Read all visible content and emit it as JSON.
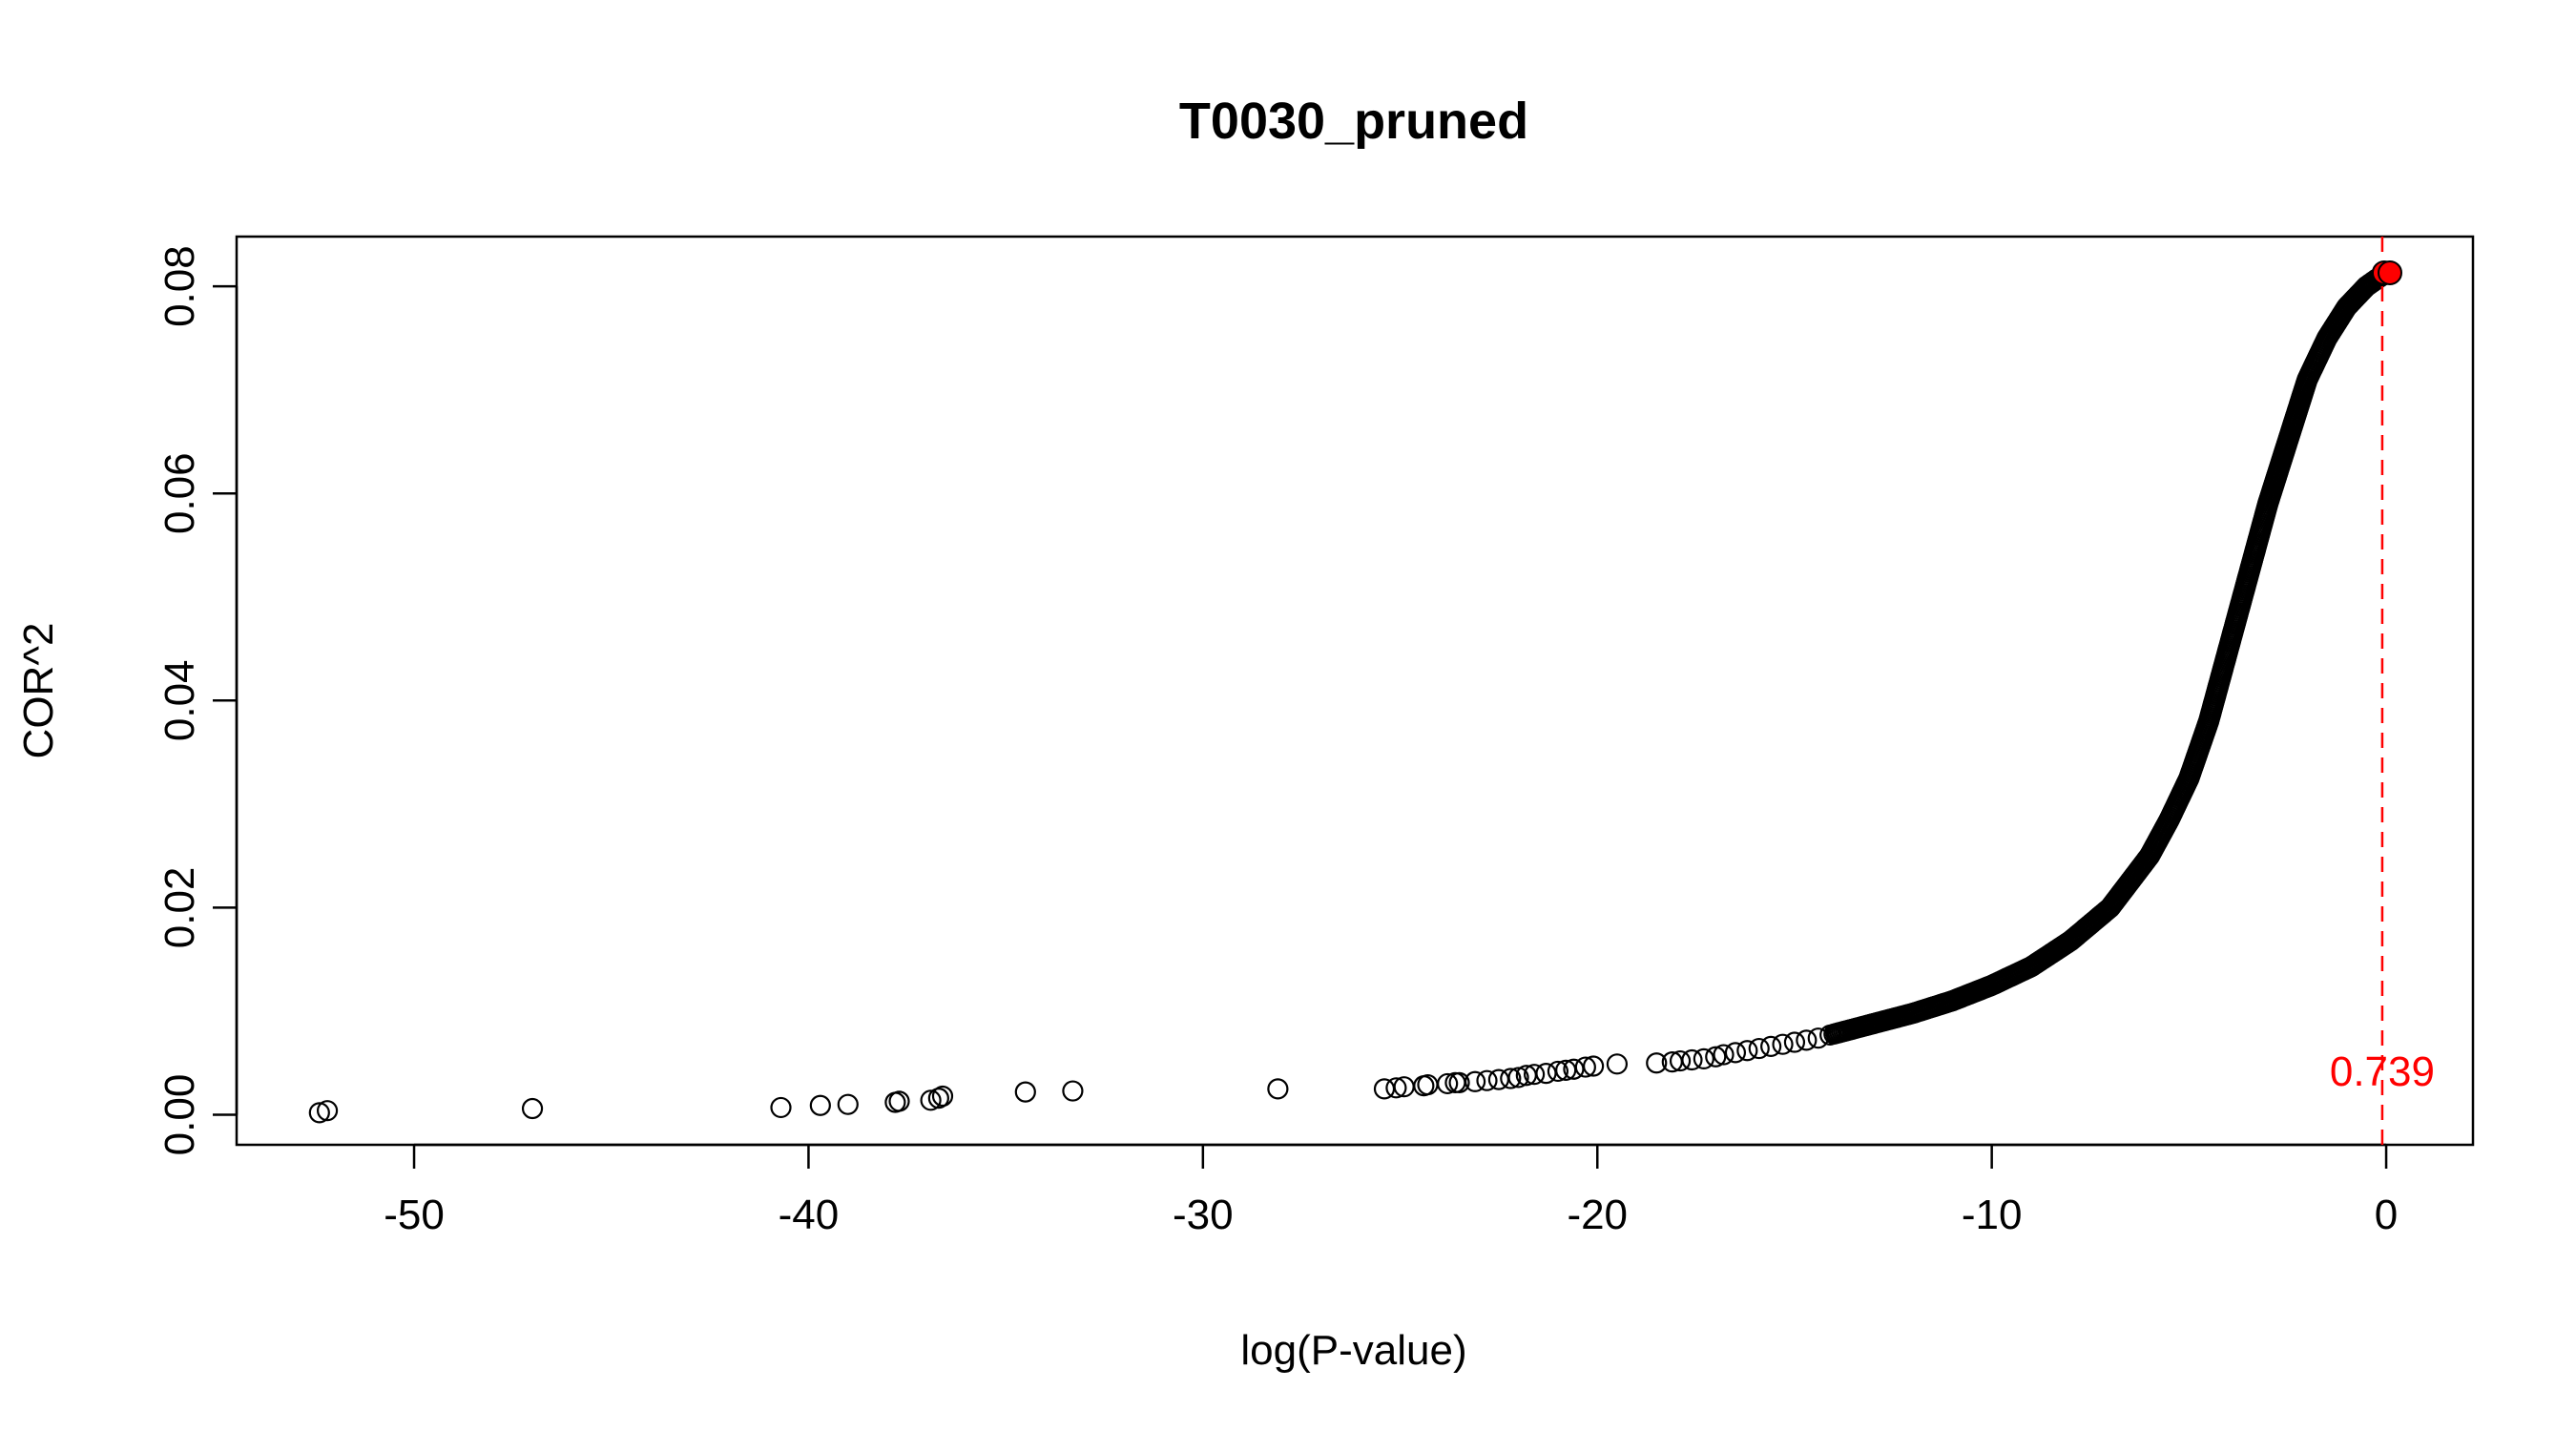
{
  "chart_data": {
    "type": "scatter",
    "title": "T0030_pruned",
    "xlabel": "log(P-value)",
    "ylabel": "COR^2",
    "xlim": [
      -54.5,
      2.2
    ],
    "ylim": [
      -0.0029,
      0.0848
    ],
    "x_ticks": [
      -50,
      -40,
      -30,
      -20,
      -10,
      0
    ],
    "x_tick_labels": [
      "-50",
      "-40",
      "-30",
      "-20",
      "-10",
      "0"
    ],
    "y_ticks": [
      0.0,
      0.02,
      0.04,
      0.06,
      0.08
    ],
    "y_tick_labels": [
      "0.00",
      "0.02",
      "0.04",
      "0.06",
      "0.08"
    ],
    "grid": false,
    "point_style": "open-circle",
    "point_color": "#000000",
    "scattered_points": {
      "x": [
        -52.4,
        -52.2,
        -47.0,
        -40.7,
        -39.7,
        -39.0,
        -37.8,
        -37.7,
        -36.9,
        -36.7,
        -36.6,
        -34.5,
        -33.3,
        -28.1,
        -25.4,
        -25.1,
        -24.9,
        -24.4,
        -24.3,
        -23.8,
        -23.6,
        -23.5,
        -23.1,
        -22.8,
        -22.5,
        -22.2,
        -22.0,
        -21.8,
        -21.6,
        -21.3,
        -21.0,
        -20.8,
        -20.6,
        -20.3,
        -20.1,
        -19.5,
        -18.5,
        -18.1,
        -17.9,
        -17.6,
        -17.3,
        -17.0,
        -16.8,
        -16.5,
        -16.2,
        -15.9,
        -15.6,
        -15.3,
        -15.0,
        -14.7,
        -14.4,
        -14.1
      ],
      "y": [
        0.0002,
        0.0004,
        0.0006,
        0.0007,
        0.0009,
        0.001,
        0.0012,
        0.0013,
        0.0014,
        0.0016,
        0.0018,
        0.0022,
        0.0023,
        0.0025,
        0.0025,
        0.0026,
        0.0027,
        0.0028,
        0.0029,
        0.003,
        0.0031,
        0.0031,
        0.0032,
        0.0033,
        0.0034,
        0.0035,
        0.0036,
        0.0038,
        0.0039,
        0.004,
        0.0042,
        0.0043,
        0.0044,
        0.0046,
        0.0047,
        0.0049,
        0.005,
        0.0051,
        0.0052,
        0.0053,
        0.0054,
        0.0056,
        0.0058,
        0.006,
        0.0062,
        0.0064,
        0.0066,
        0.0068,
        0.007,
        0.0072,
        0.0074,
        0.0077
      ]
    },
    "dense_curve": {
      "x": [
        -14.0,
        -13.0,
        -12.0,
        -11.0,
        -10.0,
        -9.0,
        -8.0,
        -7.0,
        -6.0,
        -5.5,
        -5.0,
        -4.5,
        -4.0,
        -3.5,
        -3.0,
        -2.5,
        -2.0,
        -1.5,
        -1.0,
        -0.5,
        -0.2,
        0.0
      ],
      "y": [
        0.0078,
        0.0088,
        0.0098,
        0.011,
        0.0125,
        0.0143,
        0.0168,
        0.02,
        0.025,
        0.0285,
        0.0325,
        0.038,
        0.045,
        0.052,
        0.059,
        0.065,
        0.071,
        0.075,
        0.078,
        0.08,
        0.0808,
        0.0813
      ]
    },
    "highlight_point": {
      "x": -0.05,
      "y": 0.0813,
      "color": "#ff0000"
    },
    "vline": {
      "x": -0.1,
      "color": "#ff0000",
      "style": "dashed"
    },
    "annotation": {
      "text": "0.739",
      "x": -0.1,
      "y": 0.0042,
      "color": "#ff0000"
    }
  }
}
